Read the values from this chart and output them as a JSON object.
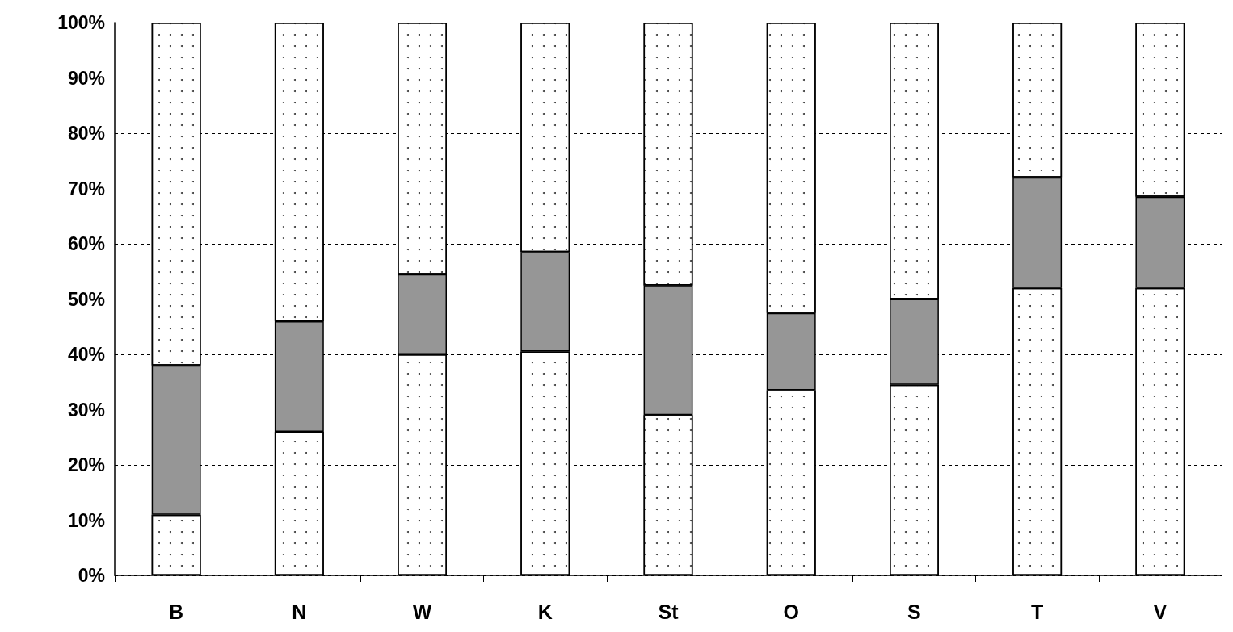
{
  "chart_data": {
    "type": "bar",
    "stacked": true,
    "categories": [
      "B",
      "N",
      "W",
      "K",
      "St",
      "O",
      "S",
      "T",
      "V"
    ],
    "series": [
      {
        "color": "#ffffff",
        "values": [
          11,
          26,
          40,
          40.5,
          29,
          33.5,
          34.5,
          52,
          52
        ]
      },
      {
        "color": "#969696",
        "values": [
          27,
          20,
          14.5,
          18,
          23.5,
          14,
          15.5,
          20,
          16.5
        ]
      },
      {
        "color": "#ffffff",
        "values": [
          62,
          54,
          45.5,
          41.5,
          47.5,
          52.5,
          50,
          28,
          31.5
        ]
      }
    ],
    "ylim": [
      0,
      100
    ],
    "yticks": [
      {
        "value": 0,
        "label": "0%"
      },
      {
        "value": 10,
        "label": "10%"
      },
      {
        "value": 20,
        "label": "20%"
      },
      {
        "value": 30,
        "label": "30%"
      },
      {
        "value": 40,
        "label": "40%"
      },
      {
        "value": 50,
        "label": "50%"
      },
      {
        "value": 60,
        "label": "60%"
      },
      {
        "value": 70,
        "label": "70%"
      },
      {
        "value": 80,
        "label": "80%"
      },
      {
        "value": 90,
        "label": "90%"
      },
      {
        "value": 100,
        "label": "100%"
      }
    ],
    "grid": "y"
  }
}
